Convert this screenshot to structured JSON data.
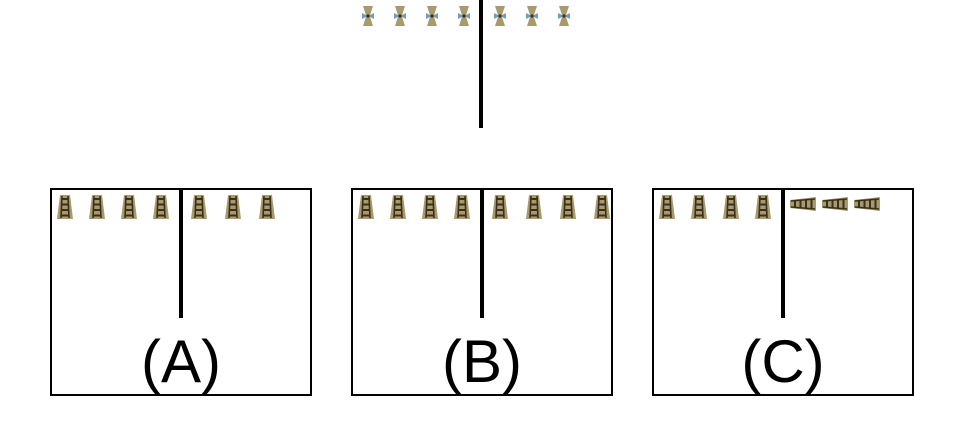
{
  "figure": {
    "top_row": {
      "left_icons": [
        "bow-tie-figure-icon",
        "bow-tie-figure-icon",
        "bow-tie-figure-icon",
        "bow-tie-figure-icon"
      ],
      "right_icons": [
        "bow-tie-figure-icon",
        "bow-tie-figure-icon",
        "bow-tie-figure-icon"
      ]
    },
    "panels": [
      {
        "id": "A",
        "label": "(A)",
        "left_icons": [
          "ladder-figure-icon",
          "ladder-figure-icon",
          "ladder-figure-icon",
          "ladder-figure-icon"
        ],
        "right_icons": [
          "ladder-figure-icon",
          "ladder-figure-icon",
          "ladder-figure-icon"
        ]
      },
      {
        "id": "B",
        "label": "(B)",
        "left_icons": [
          "ladder-figure-icon",
          "ladder-figure-icon",
          "ladder-figure-icon",
          "ladder-figure-icon"
        ],
        "right_icons": [
          "ladder-figure-icon",
          "ladder-figure-icon",
          "ladder-figure-icon",
          "ladder-figure-icon"
        ]
      },
      {
        "id": "C",
        "label": "(C)",
        "left_icons": [
          "ladder-figure-icon",
          "ladder-figure-icon",
          "ladder-figure-icon",
          "ladder-figure-icon"
        ],
        "right_icons": [
          "sideways-ladder-figure-icon",
          "sideways-ladder-figure-icon",
          "sideways-ladder-figure-icon"
        ]
      }
    ],
    "colors": {
      "figure_fill": "#a89a6a",
      "figure_dark": "#3a3020",
      "bow_tie_accent": "#6fa0b8",
      "line": "#000000"
    }
  }
}
